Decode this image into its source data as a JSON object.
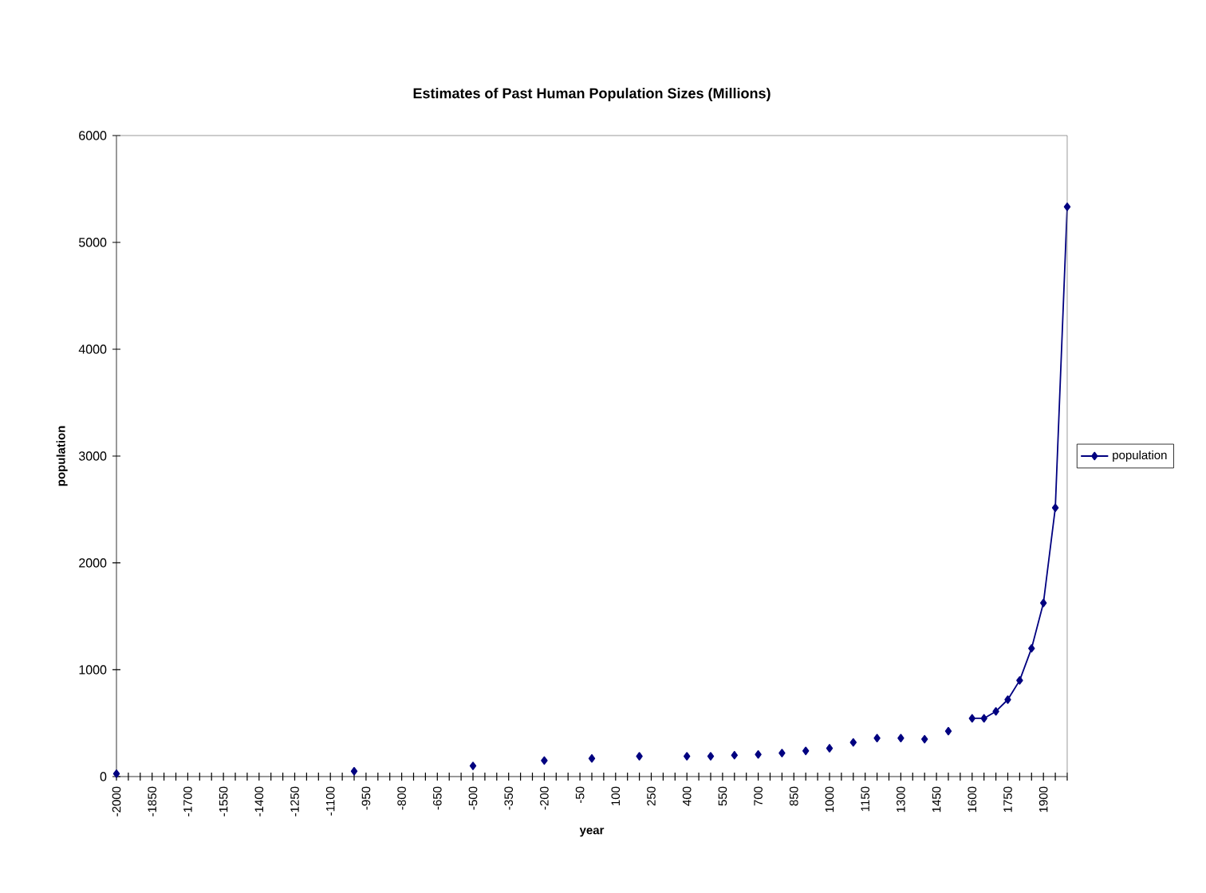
{
  "chart_data": {
    "type": "line",
    "title": "Estimates of Past Human Population Sizes (Millions)",
    "xlabel": "year",
    "ylabel": "population",
    "categories": [
      "-2000",
      null,
      null,
      "-1850",
      null,
      null,
      "-1700",
      null,
      null,
      "-1550",
      null,
      null,
      "-1400",
      null,
      null,
      "-1250",
      null,
      null,
      "-1100",
      null,
      null,
      "-950",
      null,
      null,
      "-800",
      null,
      null,
      "-650",
      null,
      null,
      "-500",
      null,
      null,
      "-350",
      null,
      null,
      "-200",
      null,
      null,
      "-50",
      null,
      null,
      "100",
      null,
      null,
      "250",
      null,
      null,
      "400",
      null,
      null,
      "550",
      null,
      null,
      "700",
      null,
      null,
      "850",
      null,
      null,
      "1000",
      null,
      null,
      "1150",
      null,
      null,
      "1300",
      null,
      null,
      "1450",
      null,
      null,
      "1600",
      null,
      null,
      "1750",
      null,
      null,
      "1900",
      null,
      null
    ],
    "series": [
      {
        "name": "population",
        "color": "#000080",
        "values": [
          27,
          null,
          null,
          null,
          null,
          null,
          null,
          null,
          null,
          null,
          null,
          null,
          null,
          null,
          null,
          null,
          null,
          null,
          null,
          null,
          50,
          null,
          null,
          null,
          null,
          null,
          null,
          null,
          null,
          null,
          100,
          null,
          null,
          null,
          null,
          null,
          150,
          null,
          null,
          null,
          170,
          null,
          null,
          null,
          190,
          null,
          null,
          null,
          190,
          null,
          190,
          null,
          200,
          null,
          207,
          null,
          220,
          null,
          240,
          null,
          265,
          null,
          320,
          null,
          360,
          null,
          360,
          null,
          350,
          null,
          425,
          null,
          545,
          545,
          610,
          720,
          900,
          1200,
          1625,
          2516,
          5333
        ]
      }
    ],
    "ylim": [
      0,
      6000
    ],
    "yticks": [
      0,
      1000,
      2000,
      3000,
      4000,
      5000,
      6000
    ],
    "legend": "right",
    "marker": "diamond",
    "line_style": "solid"
  }
}
